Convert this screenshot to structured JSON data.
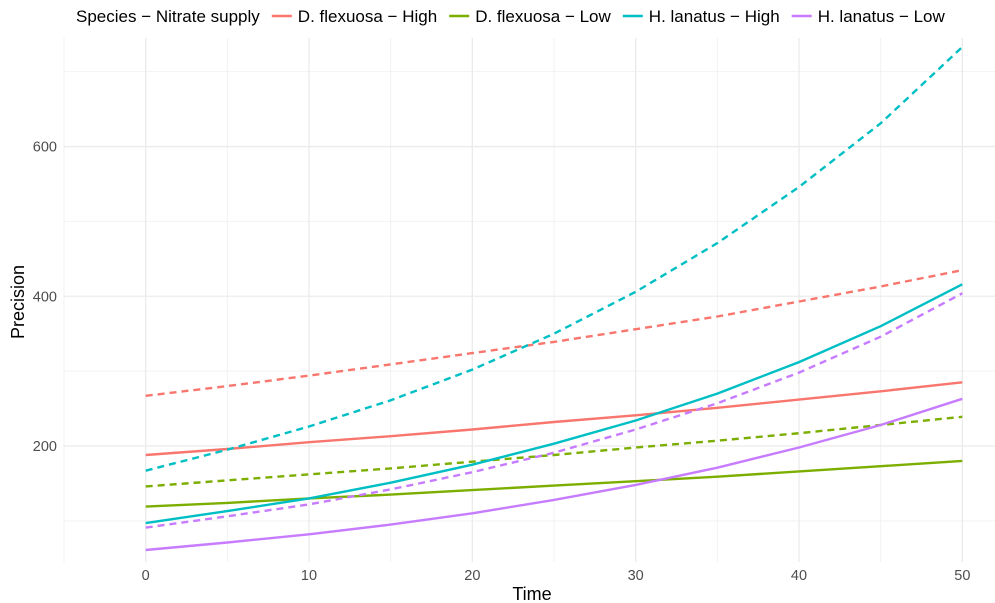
{
  "chart_data": {
    "type": "line",
    "xlabel": "Time",
    "ylabel": "Precision",
    "xlim": [
      -5,
      52
    ],
    "ylim": [
      45,
      745
    ],
    "x_ticks": [
      0,
      10,
      20,
      30,
      40,
      50
    ],
    "y_ticks": [
      200,
      400,
      600
    ],
    "grid": true,
    "legend": {
      "title": "Species − Nitrate supply",
      "placement": "top",
      "entries": [
        {
          "label": "D. flexuosa − High",
          "color": "#F8766D"
        },
        {
          "label": "D. flexuosa − Low",
          "color": "#7CAE00"
        },
        {
          "label": "H. lanatus − High",
          "color": "#00BFC4"
        },
        {
          "label": "H. lanatus − Low",
          "color": "#C77CFF"
        }
      ]
    },
    "x": [
      0,
      5,
      10,
      15,
      20,
      25,
      30,
      35,
      40,
      45,
      50
    ],
    "series": [
      {
        "group": "D. flexuosa − High",
        "style": "solid",
        "color": "#F8766D",
        "values": [
          188,
          196,
          205,
          213,
          222,
          232,
          241,
          251,
          262,
          273,
          285
        ]
      },
      {
        "group": "D. flexuosa − High",
        "style": "dashed",
        "color": "#F8766D",
        "values": [
          267,
          280,
          294,
          309,
          324,
          339,
          356,
          373,
          393,
          413,
          435
        ]
      },
      {
        "group": "D. flexuosa − Low",
        "style": "solid",
        "color": "#7CAE00",
        "values": [
          119,
          124,
          130,
          135,
          141,
          147,
          153,
          159,
          166,
          173,
          180
        ]
      },
      {
        "group": "D. flexuosa − Low",
        "style": "dashed",
        "color": "#7CAE00",
        "values": [
          146,
          154,
          162,
          170,
          179,
          188,
          198,
          207,
          217,
          228,
          239
        ]
      },
      {
        "group": "H. lanatus − High",
        "style": "solid",
        "color": "#00BFC4",
        "values": [
          97,
          113,
          130,
          151,
          175,
          203,
          234,
          270,
          312,
          360,
          416
        ]
      },
      {
        "group": "H. lanatus − High",
        "style": "dashed",
        "color": "#00BFC4",
        "values": [
          167,
          195,
          226,
          261,
          302,
          350,
          406,
          471,
          546,
          631,
          733
        ]
      },
      {
        "group": "H. lanatus − Low",
        "style": "solid",
        "color": "#C77CFF",
        "values": [
          61,
          71,
          82,
          95,
          110,
          128,
          148,
          171,
          198,
          228,
          263
        ]
      },
      {
        "group": "H. lanatus − Low",
        "style": "dashed",
        "color": "#C77CFF",
        "values": [
          91,
          106,
          122,
          142,
          165,
          191,
          222,
          257,
          298,
          346,
          404
        ]
      }
    ]
  }
}
